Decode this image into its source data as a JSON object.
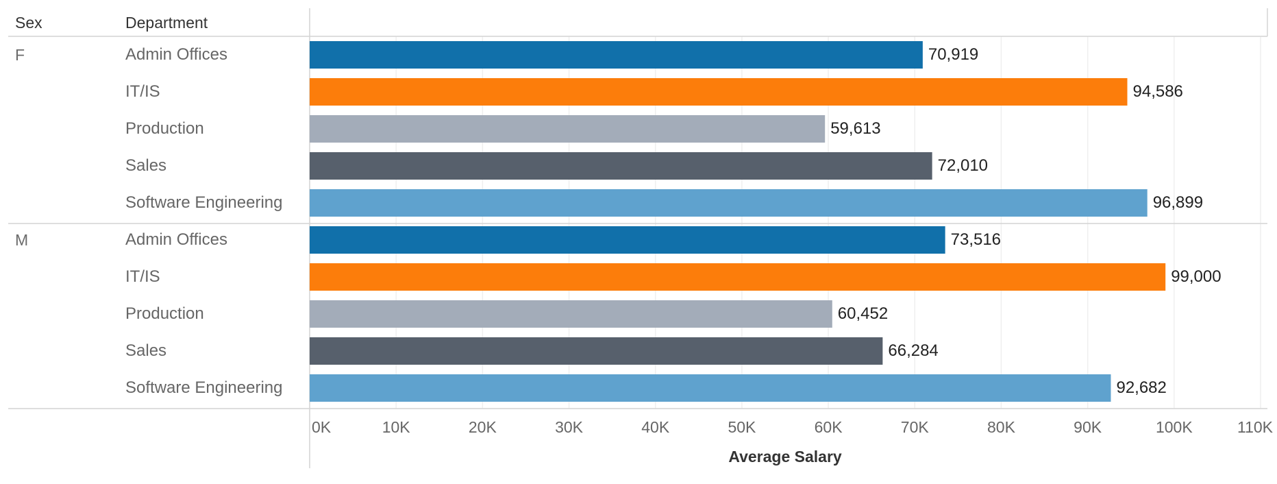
{
  "chart_data": {
    "type": "bar",
    "orientation": "horizontal",
    "row_headers": [
      "Sex",
      "Department"
    ],
    "groups": [
      {
        "name": "F",
        "rows": [
          {
            "category": "Admin Offices",
            "value": 70919,
            "label": "70,919"
          },
          {
            "category": "IT/IS",
            "value": 94586,
            "label": "94,586"
          },
          {
            "category": "Production",
            "value": 59613,
            "label": "59,613"
          },
          {
            "category": "Sales",
            "value": 72010,
            "label": "72,010"
          },
          {
            "category": "Software Engineering",
            "value": 96899,
            "label": "96,899"
          }
        ]
      },
      {
        "name": "M",
        "rows": [
          {
            "category": "Admin Offices",
            "value": 73516,
            "label": "73,516"
          },
          {
            "category": "IT/IS",
            "value": 99000,
            "label": "99,000"
          },
          {
            "category": "Production",
            "value": 60452,
            "label": "60,452"
          },
          {
            "category": "Sales",
            "value": 66284,
            "label": "66,284"
          },
          {
            "category": "Software Engineering",
            "value": 92682,
            "label": "92,682"
          }
        ]
      }
    ],
    "xlabel": "Average Salary",
    "xlim": [
      0,
      110000
    ],
    "x_ticks": [
      0,
      10000,
      20000,
      30000,
      40000,
      50000,
      60000,
      70000,
      80000,
      90000,
      100000,
      110000
    ],
    "x_tick_labels": [
      "0K",
      "10K",
      "20K",
      "30K",
      "40K",
      "50K",
      "60K",
      "70K",
      "80K",
      "90K",
      "100K",
      "110K"
    ],
    "grid": true,
    "colors": {
      "Admin Offices": "#1170aa",
      "IT/IS": "#fc7d0b",
      "Production": "#a3acb9",
      "Sales": "#57606c",
      "Software Engineering": "#5fa2ce"
    }
  }
}
